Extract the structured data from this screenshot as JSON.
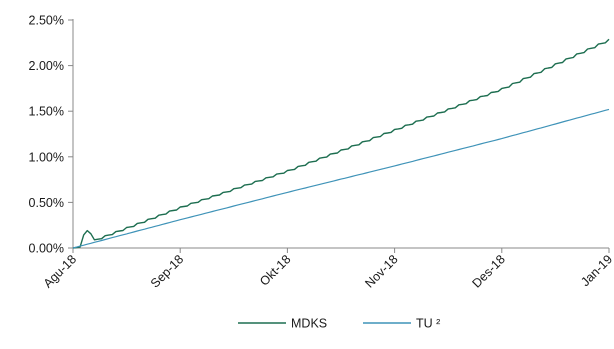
{
  "chart_data": {
    "type": "line",
    "title": "",
    "xlabel": "",
    "ylabel": "",
    "x_ticks": [
      "Agu-18",
      "Sep-18",
      "Okt-18",
      "Nov-18",
      "Des-18",
      "Jan-19"
    ],
    "y_ticks": [
      "0.00%",
      "0.50%",
      "1.00%",
      "1.50%",
      "2.00%",
      "2.50%"
    ],
    "ylim": [
      0,
      2.5
    ],
    "y_unit": "%",
    "grid": false,
    "legend_position": "bottom",
    "series": [
      {
        "name": "MDKS",
        "color": "#1d6e50",
        "x": [
          "Agu-18",
          "Sep-18",
          "Okt-18",
          "Nov-18",
          "Des-18",
          "Jan-19"
        ],
        "values": [
          0.0,
          0.45,
          0.85,
          1.3,
          1.75,
          2.29
        ]
      },
      {
        "name": "TU ²",
        "color": "#3f93b8",
        "x": [
          "Agu-18",
          "Sep-18",
          "Okt-18",
          "Nov-18",
          "Des-18",
          "Jan-19"
        ],
        "values": [
          0.0,
          0.31,
          0.61,
          0.9,
          1.2,
          1.52
        ]
      }
    ]
  }
}
